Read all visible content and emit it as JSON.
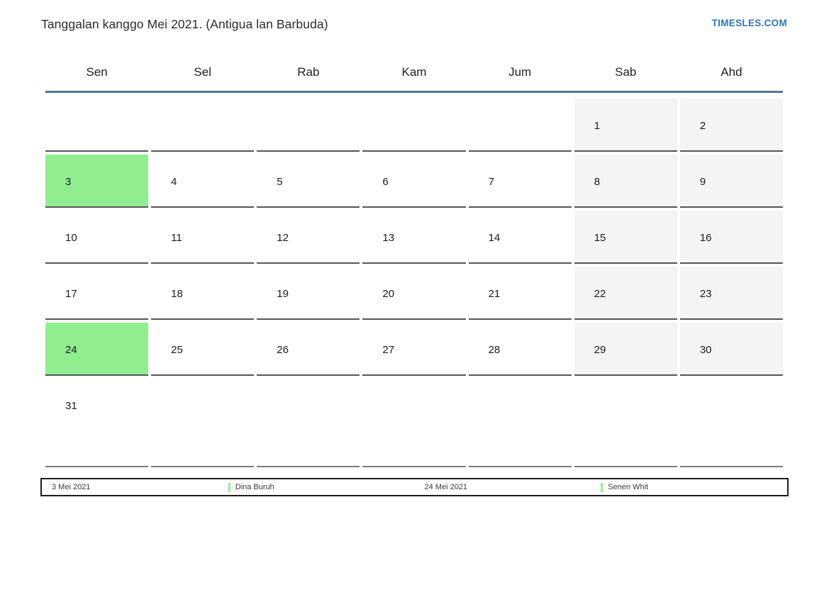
{
  "page": {
    "title": "Tanggalan kanggo Mei 2021. (Antigua lan Barbuda)",
    "brand": "TIMESLES.COM"
  },
  "calendar": {
    "weekdays": [
      "Sen",
      "Sel",
      "Rab",
      "Kam",
      "Jum",
      "Sab",
      "Ahd"
    ],
    "weeks": [
      [
        {
          "d": "",
          "t": "empty"
        },
        {
          "d": "",
          "t": "empty"
        },
        {
          "d": "",
          "t": "empty"
        },
        {
          "d": "",
          "t": "empty"
        },
        {
          "d": "",
          "t": "empty"
        },
        {
          "d": "1",
          "t": "weekend"
        },
        {
          "d": "2",
          "t": "weekend"
        }
      ],
      [
        {
          "d": "3",
          "t": "holiday"
        },
        {
          "d": "4",
          "t": "day"
        },
        {
          "d": "5",
          "t": "day"
        },
        {
          "d": "6",
          "t": "day"
        },
        {
          "d": "7",
          "t": "day"
        },
        {
          "d": "8",
          "t": "weekend"
        },
        {
          "d": "9",
          "t": "weekend"
        }
      ],
      [
        {
          "d": "10",
          "t": "day"
        },
        {
          "d": "11",
          "t": "day"
        },
        {
          "d": "12",
          "t": "day"
        },
        {
          "d": "13",
          "t": "day"
        },
        {
          "d": "14",
          "t": "day"
        },
        {
          "d": "15",
          "t": "weekend"
        },
        {
          "d": "16",
          "t": "weekend"
        }
      ],
      [
        {
          "d": "17",
          "t": "day"
        },
        {
          "d": "18",
          "t": "day"
        },
        {
          "d": "19",
          "t": "day"
        },
        {
          "d": "20",
          "t": "day"
        },
        {
          "d": "21",
          "t": "day"
        },
        {
          "d": "22",
          "t": "weekend"
        },
        {
          "d": "23",
          "t": "weekend"
        }
      ],
      [
        {
          "d": "24",
          "t": "holiday"
        },
        {
          "d": "25",
          "t": "day"
        },
        {
          "d": "26",
          "t": "day"
        },
        {
          "d": "27",
          "t": "day"
        },
        {
          "d": "28",
          "t": "day"
        },
        {
          "d": "29",
          "t": "weekend"
        },
        {
          "d": "30",
          "t": "weekend"
        }
      ],
      [
        {
          "d": "31",
          "t": "day"
        },
        {
          "d": "",
          "t": "empty"
        },
        {
          "d": "",
          "t": "empty"
        },
        {
          "d": "",
          "t": "empty"
        },
        {
          "d": "",
          "t": "empty"
        },
        {
          "d": "",
          "t": "empty"
        },
        {
          "d": "",
          "t": "empty"
        }
      ]
    ]
  },
  "legend": {
    "items": [
      {
        "date": "3 Mei 2021",
        "name": "Dina Buruh"
      },
      {
        "date": "24 Mei 2021",
        "name": "Senen Whit"
      }
    ]
  },
  "colors": {
    "holiday_green": "#90ee90",
    "weekend_gray": "#f4f4f4",
    "header_line": "#51749e",
    "brand_blue": "#2e75bb"
  }
}
